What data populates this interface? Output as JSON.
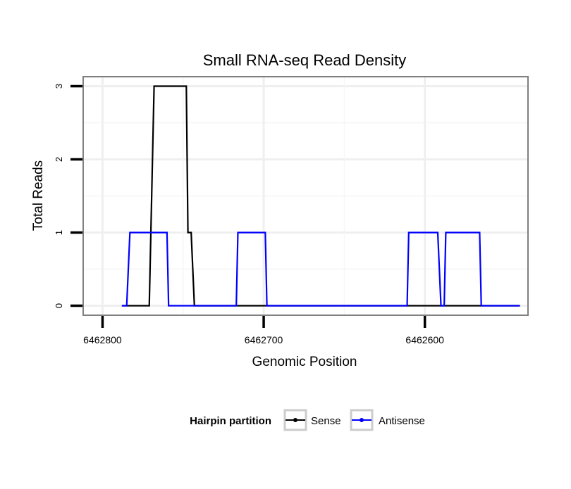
{
  "chart_data": {
    "type": "line",
    "title": "Small RNA-seq Read Density",
    "xlabel": "Genomic Position",
    "ylabel": "Total Reads",
    "xlim": [
      6462812,
      6462536
    ],
    "ylim": [
      -0.13,
      3.13
    ],
    "x_reversed": true,
    "x_ticks": [
      6462800,
      6462700,
      6462600
    ],
    "x_tick_labels": [
      "6462800",
      "6462700",
      "6462600"
    ],
    "y_ticks": [
      0,
      1,
      2,
      3
    ],
    "y_tick_labels": [
      "0",
      "1",
      "2",
      "3"
    ],
    "grid": true,
    "legend": {
      "title": "Hairpin partition",
      "position": "bottom",
      "entries": [
        "Sense",
        "Antisense"
      ]
    },
    "series": [
      {
        "name": "Sense",
        "color": "#000000",
        "x": [
          6462788,
          6462771,
          6462768,
          6462748,
          6462747,
          6462746,
          6462745,
          6462743,
          6462541
        ],
        "values": [
          0,
          0,
          3,
          3,
          1,
          1,
          1,
          0,
          0
        ]
      },
      {
        "name": "Antisense",
        "color": "#0000ff",
        "x": [
          6462788,
          6462785,
          6462783,
          6462761,
          6462760,
          6462759,
          6462717,
          6462716,
          6462699,
          6462698,
          6462611,
          6462610,
          6462592,
          6462590,
          6462588,
          6462587,
          6462566,
          6462565,
          6462541
        ],
        "values": [
          0,
          0,
          1,
          1,
          1,
          0,
          0,
          1,
          1,
          0,
          0,
          1,
          1,
          0,
          0,
          1,
          1,
          0,
          0
        ]
      }
    ]
  }
}
